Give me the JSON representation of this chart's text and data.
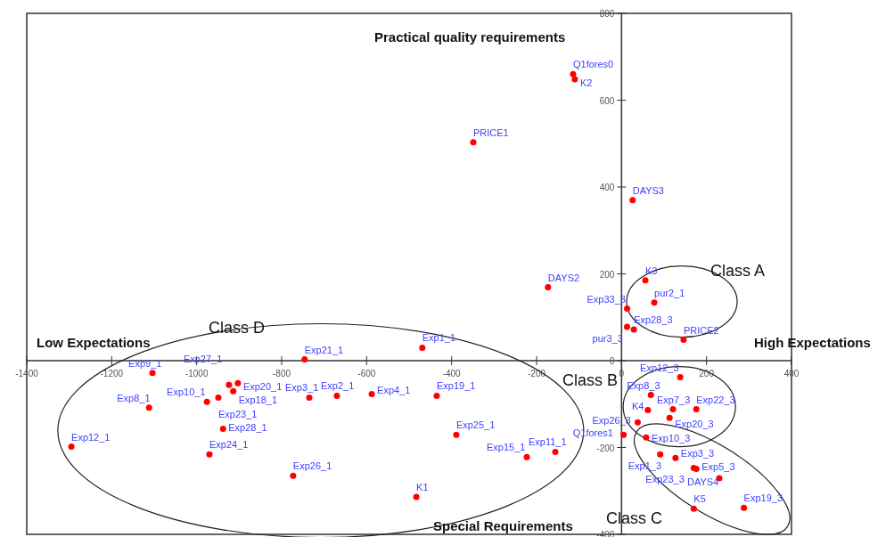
{
  "chart_data": {
    "type": "scatter",
    "marker": "circle",
    "grid": false,
    "xlim": [
      -1400,
      400
    ],
    "ylim": [
      -400,
      800
    ],
    "xticks": [
      -1400,
      -1200,
      -1000,
      -800,
      -600,
      -400,
      -200,
      0,
      200,
      400
    ],
    "yticks": [
      -400,
      -200,
      0,
      200,
      400,
      600,
      800
    ],
    "series": [
      {
        "color": "#ff0000",
        "x": [
          -114,
          -110,
          -349,
          26,
          -173,
          56,
          77,
          13,
          13,
          29,
          146,
          -469,
          -746,
          -1104,
          -903,
          -924,
          -914,
          -976,
          -949,
          -1112,
          -938,
          -1295,
          -970,
          -735,
          -670,
          -588,
          -435,
          -389,
          -223,
          -156,
          -773,
          -483,
          138,
          69,
          62,
          121,
          176,
          113,
          38,
          5,
          58,
          91,
          127,
          170,
          176,
          230,
          170,
          288
        ],
        "values": [
          660,
          648,
          503,
          370,
          169,
          185,
          134,
          120,
          78,
          72,
          48,
          30,
          3,
          -28,
          -52,
          -56,
          -70,
          -95,
          -85,
          -108,
          -157,
          -198,
          -216,
          -85,
          -81,
          -77,
          -81,
          -171,
          -222,
          -210,
          -265,
          -314,
          -38,
          -79,
          -114,
          -112,
          -112,
          -132,
          -142,
          -171,
          -177,
          -216,
          -224,
          -247,
          -249,
          -271,
          -341,
          -339
        ],
        "value_labels": [
          "Q1fores0",
          "K2",
          "PRICE1",
          "DAYS3",
          "DAYS2",
          "K3",
          "pur2_1",
          "Exp33_3",
          "pur3_3",
          "Exp28_3",
          "PRICE2",
          "Exp1_1",
          "Exp21_1",
          "Exp9_1",
          "Exp20_1",
          "Exp27_1",
          "Exp18_1",
          "Exp10_1",
          "Exp23_1",
          "Exp8_1",
          "Exp28_1",
          "Exp12_1",
          "Exp24_1",
          "Exp3_1",
          "Exp2_1",
          "Exp4_1",
          "Exp19_1",
          "Exp25_1",
          "Exp15_1",
          "Exp11_1",
          "Exp26_1",
          "K1",
          "Exp12_3",
          "Exp8_3",
          "K4",
          "Exp7_3",
          "Exp22_3",
          "Exp20_3",
          "Exp26_3",
          "Q1fores1",
          "Exp10_3",
          "Exp1_3",
          "Exp3_3",
          "Exp23_3",
          "Exp5_3",
          "DAYS4",
          "K5",
          "Exp19_3"
        ]
      }
    ],
    "annotations": [
      "Practical quality requirements",
      "Low Expectations",
      "High Expectations",
      "Special Requirements",
      "Class D",
      "Class A",
      "Class B",
      "Class C"
    ]
  }
}
